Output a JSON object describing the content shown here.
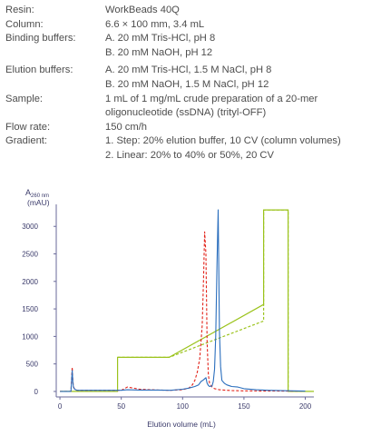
{
  "info": {
    "resin_label": "Resin:",
    "resin_value": "WorkBeads 40Q",
    "column_label": "Column:",
    "column_value": "6.6 × 100 mm, 3.4 mL",
    "binding_label": "Binding buffers:",
    "binding_a": "A. 20 mM Tris-HCl, pH 8",
    "binding_b": "B. 20 mM NaOH, pH 12",
    "elution_label": "Elution buffers:",
    "elution_a": "A. 20 mM Tris-HCl, 1.5 M NaCl, pH 8",
    "elution_b": "B. 20 mM NaOH, 1.5 M NaCl, pH 12",
    "sample_label": "Sample:",
    "sample_line1": "1 mL of 1 mg/mL crude preparation of a 20-mer",
    "sample_line2": "oligonucleotide (ssDNA) (trityl-OFF)",
    "flow_label": "Flow rate:",
    "flow_value": "150 cm/h",
    "gradient_label": "Gradient:",
    "gradient_1": "1. Step: 20% elution buffer, 10 CV (column volumes)",
    "gradient_2": "2. Linear: 20% to 40% or 50%, 20 CV"
  },
  "chart_data": {
    "type": "line",
    "ylabel_main": "A",
    "ylabel_sub": "260 nm",
    "ylabel_unit": "(mAU)",
    "xlabel": "Elution volume (mL)",
    "xlim": [
      -3,
      207
    ],
    "ylim": [
      -100,
      3400
    ],
    "xticks": [
      0,
      50,
      100,
      150,
      200
    ],
    "yticks": [
      0,
      500,
      1000,
      1500,
      2000,
      2500,
      3000
    ],
    "colors": {
      "blue_trace": "#2a6ebd",
      "red_trace": "#e2231a",
      "gradient": "#9bc31c",
      "axis": "#6a6a9a",
      "text": "#3a3a6a"
    },
    "series": [
      {
        "color": "#2a6ebd",
        "style": "solid",
        "x": [
          0,
          9,
          10,
          10.5,
          11,
          12,
          14,
          50,
          55,
          65,
          80,
          90,
          100,
          105,
          110,
          113,
          115,
          117,
          119,
          120,
          121,
          122,
          124,
          125,
          126,
          127,
          128,
          129,
          130,
          131,
          132,
          134,
          136,
          140,
          145,
          150,
          160,
          170,
          190,
          200
        ],
        "y": [
          0,
          0,
          380,
          170,
          80,
          40,
          20,
          20,
          30,
          25,
          25,
          20,
          40,
          60,
          90,
          120,
          180,
          210,
          250,
          150,
          110,
          90,
          100,
          180,
          400,
          1000,
          2300,
          3300,
          1100,
          450,
          200,
          150,
          120,
          90,
          80,
          50,
          30,
          20,
          10,
          5
        ]
      },
      {
        "color": "#e2231a",
        "style": "dashed",
        "x": [
          0,
          9,
          10,
          10.5,
          11,
          12,
          14,
          50,
          55,
          60,
          65,
          80,
          90,
          100,
          105,
          108,
          110,
          112,
          114,
          116,
          117,
          118,
          119,
          120,
          121,
          122,
          124,
          126,
          130,
          140,
          150,
          190,
          200
        ],
        "y": [
          0,
          0,
          440,
          200,
          90,
          40,
          20,
          20,
          80,
          60,
          40,
          25,
          20,
          30,
          60,
          120,
          200,
          350,
          600,
          1200,
          2000,
          2900,
          2500,
          900,
          300,
          150,
          80,
          50,
          30,
          15,
          10,
          5,
          5
        ]
      },
      {
        "color": "#9bc31c",
        "style": "solid",
        "x": [
          0,
          47,
          47,
          89,
          166,
          166,
          186,
          186,
          207
        ],
        "y": [
          0,
          0,
          620,
          620,
          1580,
          3300,
          3300,
          0,
          0
        ]
      },
      {
        "color": "#9bc31c",
        "style": "dashed",
        "x": [
          47,
          89,
          166,
          166,
          186,
          186
        ],
        "y": [
          620,
          620,
          1280,
          3300,
          3300,
          0
        ]
      }
    ]
  }
}
